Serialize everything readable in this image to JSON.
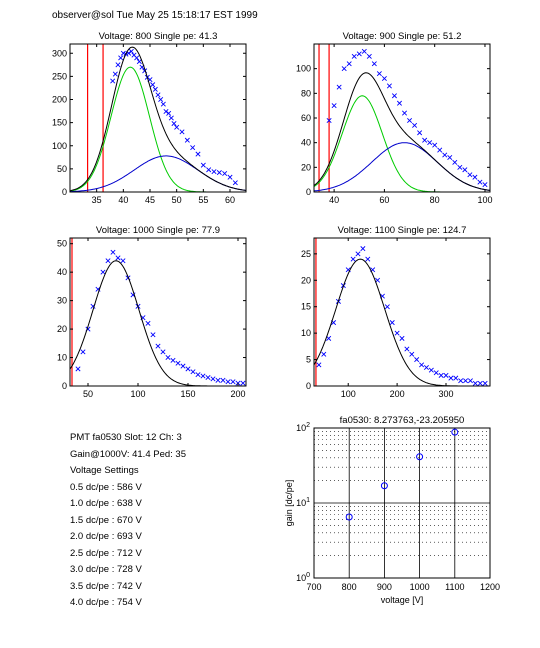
{
  "header": "observer@sol  Tue May 25 15:18:17 EST 1999",
  "info": {
    "pmt_line": "PMT fa0530  Slot: 12  Ch: 3",
    "gain_line": "Gain@1000V: 41.4  Ped: 35",
    "settings_title": "Voltage Settings",
    "settings": [
      "0.5 dc/pe : 586 V",
      "1.0 dc/pe : 638 V",
      "1.5 dc/pe : 670 V",
      "2.0 dc/pe : 693 V",
      "2.5 dc/pe : 712 V",
      "3.0 dc/pe : 728 V",
      "3.5 dc/pe : 742 V",
      "4.0 dc/pe : 754 V"
    ]
  },
  "colors": {
    "data": "#0000ff",
    "total_fit": "#000000",
    "single_pe": "#00cc00",
    "multi_pe": "#0000cc",
    "pedestal": "#ff0000",
    "gain_fit": "#ff0000"
  },
  "chart_data": [
    {
      "type": "scatter",
      "title": "Voltage: 800  Single pe: 41.3",
      "xlim": [
        30,
        63
      ],
      "ylim": [
        0,
        320
      ],
      "xticks": [
        35,
        40,
        45,
        50,
        55,
        60
      ],
      "yticks": [
        0,
        50,
        100,
        150,
        200,
        250,
        300
      ],
      "pedestal_line_x": [
        33.3,
        36.2
      ],
      "fit": {
        "amp1": 270,
        "mu1": 41.3,
        "sig1": 3.6,
        "amp2": 78,
        "mu2": 48,
        "sig2": 6.0
      },
      "data_x": [
        38,
        38.5,
        39,
        39.5,
        40,
        40.5,
        41,
        41.5,
        42,
        42.5,
        43,
        43.5,
        44,
        44.5,
        45,
        45.5,
        46,
        46.5,
        47,
        47.5,
        48,
        48.5,
        49,
        49.5,
        50,
        51,
        52,
        53,
        54,
        55,
        56,
        57,
        58,
        59,
        60,
        61
      ],
      "data_y": [
        240,
        255,
        275,
        290,
        300,
        298,
        300,
        304,
        296,
        290,
        282,
        270,
        262,
        248,
        243,
        232,
        222,
        210,
        200,
        190,
        174,
        170,
        160,
        148,
        140,
        130,
        112,
        96,
        82,
        58,
        48,
        44,
        42,
        40,
        32,
        20
      ]
    },
    {
      "type": "scatter",
      "title": "Voltage: 900  Single pe: 51.2",
      "xlim": [
        32,
        102
      ],
      "ylim": [
        0,
        120
      ],
      "xticks": [
        40,
        60,
        80,
        100
      ],
      "yticks": [
        0,
        20,
        40,
        60,
        80,
        100
      ],
      "pedestal_line_x": [
        34,
        38
      ],
      "fit": {
        "amp1": 78,
        "mu1": 51.2,
        "sig1": 8.0,
        "amp2": 40,
        "mu2": 68,
        "sig2": 13.0
      },
      "data_x": [
        38,
        40,
        42,
        44,
        46,
        48,
        50,
        52,
        54,
        56,
        58,
        60,
        62,
        64,
        66,
        68,
        70,
        72,
        74,
        76,
        78,
        80,
        82,
        84,
        86,
        88,
        90,
        92,
        94,
        96,
        98,
        100
      ],
      "data_y": [
        58,
        70,
        85,
        100,
        104,
        110,
        112,
        114,
        110,
        104,
        96,
        92,
        86,
        78,
        72,
        64,
        58,
        54,
        48,
        42,
        40,
        38,
        34,
        30,
        28,
        24,
        20,
        18,
        14,
        12,
        8,
        6
      ]
    },
    {
      "type": "scatter",
      "title": "Voltage: 1000  Single pe: 77.9",
      "xlim": [
        32,
        208
      ],
      "ylim": [
        0,
        52
      ],
      "xticks": [
        50,
        100,
        150,
        200
      ],
      "yticks": [
        0,
        10,
        20,
        30,
        40,
        50
      ],
      "pedestal_line_x": [
        34
      ],
      "fit": {
        "amp1": 44,
        "mu1": 78,
        "sig1": 23,
        "amp2": 0,
        "mu2": 100,
        "sig2": 30
      },
      "data_x": [
        40,
        45,
        50,
        55,
        60,
        65,
        70,
        75,
        80,
        85,
        90,
        95,
        100,
        105,
        110,
        115,
        120,
        125,
        130,
        135,
        140,
        145,
        150,
        155,
        160,
        165,
        170,
        175,
        180,
        185,
        190,
        195,
        200,
        205
      ],
      "data_y": [
        6,
        12,
        20,
        28,
        34,
        40,
        44,
        47,
        45,
        44,
        38,
        32,
        28,
        24,
        22,
        18,
        14,
        12,
        10,
        9,
        8,
        7,
        6,
        5,
        4,
        3.5,
        3,
        2.5,
        2,
        2,
        1.5,
        1.5,
        1,
        1
      ]
    },
    {
      "type": "scatter",
      "title": "Voltage: 1100  Single pe: 124.7",
      "xlim": [
        30,
        390
      ],
      "ylim": [
        0,
        28
      ],
      "xticks": [
        100,
        200,
        300
      ],
      "yticks": [
        0,
        5,
        10,
        15,
        20,
        25
      ],
      "pedestal_line_x": [
        34
      ],
      "fit": {
        "amp1": 24,
        "mu1": 124.7,
        "sig1": 50,
        "amp2": 0,
        "mu2": 180,
        "sig2": 60
      },
      "data_x": [
        40,
        50,
        60,
        70,
        80,
        90,
        100,
        110,
        120,
        130,
        140,
        150,
        160,
        170,
        180,
        190,
        200,
        210,
        220,
        230,
        240,
        250,
        260,
        270,
        280,
        290,
        300,
        310,
        320,
        330,
        340,
        350,
        360,
        370,
        380
      ],
      "data_y": [
        4,
        6,
        9,
        12,
        16,
        19,
        22,
        24,
        25,
        26,
        24,
        22,
        20,
        17,
        15,
        12,
        10,
        9,
        7,
        6,
        5,
        4,
        3.5,
        3,
        2.5,
        2,
        2,
        1.5,
        1.5,
        1,
        1,
        1,
        0.5,
        0.5,
        0.5
      ]
    },
    {
      "type": "line",
      "title": "fa0530: 8.273763,-23.205950",
      "xlabel": "voltage [V]",
      "ylabel": "gain [dc/pe]",
      "xlim": [
        700,
        1200
      ],
      "ylim": [
        1,
        100
      ],
      "yscale": "log",
      "grid": true,
      "xticks": [
        700,
        800,
        900,
        1000,
        1100,
        1200
      ],
      "yticks": [
        1,
        10,
        100
      ],
      "ytick_labels": [
        "10^0",
        "10^1",
        "10^2"
      ],
      "points_x": [
        800,
        900,
        1000,
        1100
      ],
      "points_y": [
        6.5,
        17,
        41.4,
        88
      ],
      "fit_slope": 8.273763,
      "fit_intercept": -23.20595
    }
  ]
}
